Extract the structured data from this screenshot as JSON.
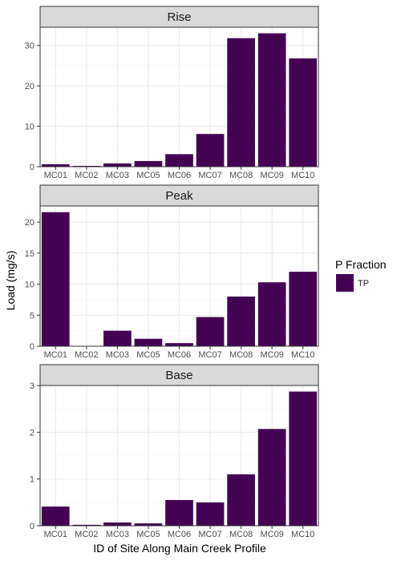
{
  "chart_data": {
    "type": "bar",
    "facet_order": [
      "Rise",
      "Peak",
      "Base"
    ],
    "categories": [
      "MC01",
      "MC02",
      "MC03",
      "MC05",
      "MC06",
      "MC07",
      "MC08",
      "MC09",
      "MC10"
    ],
    "panels": [
      {
        "title": "Rise",
        "ylim": [
          0,
          34.5
        ],
        "yticks": [
          0,
          10,
          20,
          30
        ],
        "series": [
          {
            "name": "TP",
            "values": [
              0.6,
              0.2,
              0.8,
              1.4,
              3.1,
              8.1,
              31.8,
              33.0,
              26.8
            ]
          }
        ]
      },
      {
        "title": "Peak",
        "ylim": [
          0,
          22.6
        ],
        "yticks": [
          0,
          5,
          10,
          15,
          20
        ],
        "series": [
          {
            "name": "TP",
            "values": [
              21.6,
              0.0,
              2.5,
              1.2,
              0.5,
              4.7,
              8.0,
              10.3,
              12.0
            ]
          }
        ]
      },
      {
        "title": "Base",
        "ylim": [
          0,
          3.0
        ],
        "yticks": [
          0,
          1,
          2,
          3
        ],
        "series": [
          {
            "name": "TP",
            "values": [
              0.41,
              0.02,
              0.07,
              0.05,
              0.55,
              0.5,
              1.1,
              2.07,
              2.87
            ]
          }
        ]
      }
    ],
    "xlabel": "ID of Site Along Main Creek Profile",
    "ylabel": "Load (mg/s)",
    "legend": {
      "title": "P Fraction",
      "placement": "right",
      "entries": [
        {
          "label": "TP",
          "color": "#440154"
        }
      ]
    },
    "grid": true,
    "colors": {
      "bar": "#440154",
      "strip": "#d9d9d9",
      "grid_major": "#ebebeb",
      "grid_minor": "#f5f5f5",
      "border": "#333333"
    }
  }
}
